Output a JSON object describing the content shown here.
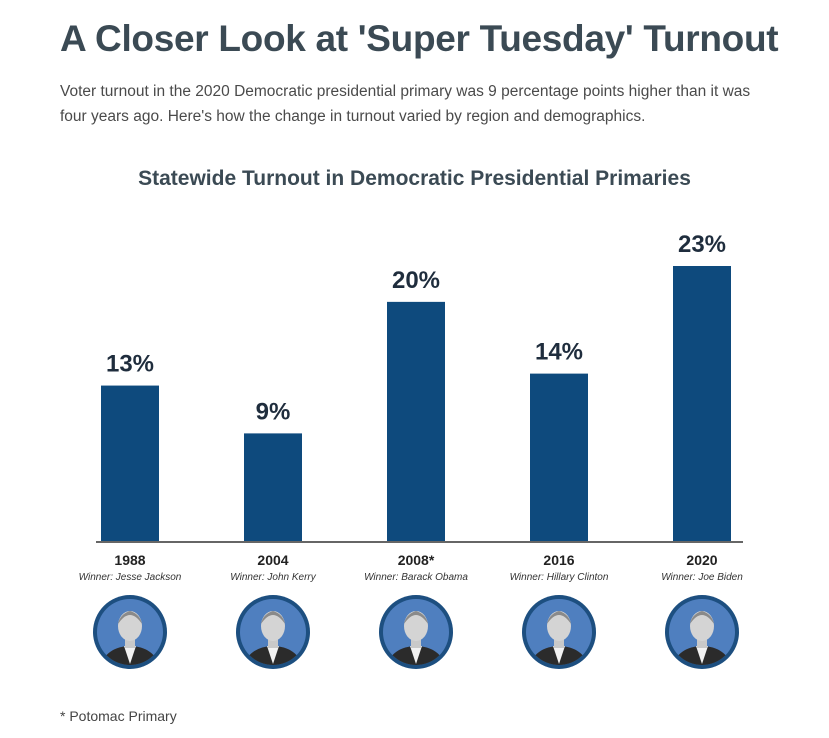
{
  "header": {
    "title": "A Closer Look at 'Super Tuesday' Turnout",
    "dek": "Voter turnout in the 2020 Democratic presidential primary was 9 percentage points higher than it was four years ago. Here's how the change in turnout varied by region and demographics."
  },
  "footnote": "* Potomac Primary",
  "chart_data": {
    "type": "bar",
    "title": "Statewide Turnout in Democratic Presidential Primaries",
    "categories": [
      "1988",
      "2004",
      "2008*",
      "2016",
      "2020"
    ],
    "winners": [
      "Winner: Jesse Jackson",
      "Winner: John Kerry",
      "Winner: Barack Obama",
      "Winner: Hillary Clinton",
      "Winner: Joe Biden"
    ],
    "values": [
      13,
      9,
      20,
      14,
      23
    ],
    "value_labels": [
      "13%",
      "9%",
      "20%",
      "14%",
      "23%"
    ],
    "portraits": [
      "jesse-jackson-portrait-icon",
      "john-kerry-portrait-icon",
      "barack-obama-portrait-icon",
      "hillary-clinton-portrait-icon",
      "joe-biden-portrait-icon"
    ],
    "xlabel": "",
    "ylabel": "",
    "ylim": [
      0,
      23
    ],
    "grid": false,
    "legend": "none",
    "colors": {
      "bar": "#0e4a7d",
      "label": "#1f2d3d",
      "baseline": "#333333",
      "portrait_ring": "#1d4f80",
      "portrait_bg": "#4f7fbf"
    }
  }
}
